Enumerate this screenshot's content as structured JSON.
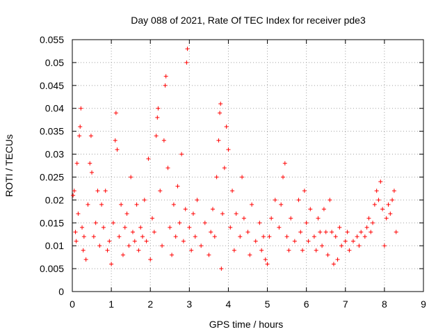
{
  "chart_data": {
    "type": "scatter",
    "title": "Day 088 of 2021, Rate Of TEC Index for receiver pde3",
    "xlabel": "GPS time / hours",
    "ylabel": "ROTI / TECUs",
    "xlim": [
      0,
      9
    ],
    "ylim": [
      0,
      0.055
    ],
    "x_ticks": [
      "0",
      "1",
      "2",
      "3",
      "4",
      "5",
      "6",
      "7",
      "8",
      "9"
    ],
    "y_ticks": [
      "0",
      "0.005",
      "0.01",
      "0.015",
      "0.02",
      "0.025",
      "0.03",
      "0.035",
      "0.04",
      "0.045",
      "0.05",
      "0.055"
    ],
    "grid": true,
    "marker": "+",
    "series": [
      {
        "name": "ROTI",
        "color": "#ff0000",
        "points": [
          [
            0.02,
            0.021
          ],
          [
            0.05,
            0.022
          ],
          [
            0.08,
            0.013
          ],
          [
            0.1,
            0.011
          ],
          [
            0.12,
            0.028
          ],
          [
            0.15,
            0.017
          ],
          [
            0.18,
            0.034
          ],
          [
            0.2,
            0.036
          ],
          [
            0.22,
            0.04
          ],
          [
            0.25,
            0.014
          ],
          [
            0.28,
            0.009
          ],
          [
            0.3,
            0.012
          ],
          [
            0.35,
            0.007
          ],
          [
            0.4,
            0.019
          ],
          [
            0.45,
            0.028
          ],
          [
            0.48,
            0.034
          ],
          [
            0.5,
            0.026
          ],
          [
            0.55,
            0.012
          ],
          [
            0.6,
            0.015
          ],
          [
            0.65,
            0.022
          ],
          [
            0.7,
            0.01
          ],
          [
            0.75,
            0.019
          ],
          [
            0.8,
            0.014
          ],
          [
            0.85,
            0.022
          ],
          [
            0.9,
            0.009
          ],
          [
            0.95,
            0.011
          ],
          [
            1.0,
            0.006
          ],
          [
            1.05,
            0.015
          ],
          [
            1.1,
            0.033
          ],
          [
            1.12,
            0.039
          ],
          [
            1.15,
            0.031
          ],
          [
            1.2,
            0.012
          ],
          [
            1.25,
            0.019
          ],
          [
            1.3,
            0.008
          ],
          [
            1.35,
            0.014
          ],
          [
            1.4,
            0.017
          ],
          [
            1.45,
            0.01
          ],
          [
            1.5,
            0.025
          ],
          [
            1.55,
            0.013
          ],
          [
            1.6,
            0.011
          ],
          [
            1.65,
            0.019
          ],
          [
            1.7,
            0.009
          ],
          [
            1.75,
            0.014
          ],
          [
            1.8,
            0.012
          ],
          [
            1.85,
            0.02
          ],
          [
            1.9,
            0.011
          ],
          [
            1.95,
            0.029
          ],
          [
            2.0,
            0.007
          ],
          [
            2.05,
            0.016
          ],
          [
            2.1,
            0.013
          ],
          [
            2.15,
            0.034
          ],
          [
            2.18,
            0.038
          ],
          [
            2.2,
            0.04
          ],
          [
            2.25,
            0.022
          ],
          [
            2.3,
            0.01
          ],
          [
            2.35,
            0.033
          ],
          [
            2.38,
            0.045
          ],
          [
            2.4,
            0.047
          ],
          [
            2.45,
            0.027
          ],
          [
            2.5,
            0.014
          ],
          [
            2.55,
            0.008
          ],
          [
            2.6,
            0.019
          ],
          [
            2.65,
            0.012
          ],
          [
            2.7,
            0.023
          ],
          [
            2.75,
            0.015
          ],
          [
            2.8,
            0.03
          ],
          [
            2.85,
            0.011
          ],
          [
            2.9,
            0.018
          ],
          [
            2.93,
            0.05
          ],
          [
            2.95,
            0.053
          ],
          [
            3.0,
            0.014
          ],
          [
            3.05,
            0.009
          ],
          [
            3.1,
            0.017
          ],
          [
            3.15,
            0.012
          ],
          [
            3.2,
            0.02
          ],
          [
            3.3,
            0.01
          ],
          [
            3.4,
            0.015
          ],
          [
            3.5,
            0.008
          ],
          [
            3.55,
            0.013
          ],
          [
            3.6,
            0.018
          ],
          [
            3.65,
            0.012
          ],
          [
            3.7,
            0.025
          ],
          [
            3.75,
            0.033
          ],
          [
            3.78,
            0.039
          ],
          [
            3.8,
            0.041
          ],
          [
            3.82,
            0.005
          ],
          [
            3.85,
            0.017
          ],
          [
            3.9,
            0.027
          ],
          [
            3.95,
            0.036
          ],
          [
            4.0,
            0.031
          ],
          [
            4.05,
            0.014
          ],
          [
            4.1,
            0.022
          ],
          [
            4.15,
            0.009
          ],
          [
            4.2,
            0.017
          ],
          [
            4.3,
            0.012
          ],
          [
            4.35,
            0.025
          ],
          [
            4.4,
            0.016
          ],
          [
            4.5,
            0.013
          ],
          [
            4.55,
            0.008
          ],
          [
            4.6,
            0.019
          ],
          [
            4.7,
            0.011
          ],
          [
            4.8,
            0.015
          ],
          [
            4.85,
            0.009
          ],
          [
            4.9,
            0.012
          ],
          [
            4.95,
            0.007
          ],
          [
            5.0,
            0.006
          ],
          [
            5.05,
            0.012
          ],
          [
            5.1,
            0.016
          ],
          [
            5.2,
            0.02
          ],
          [
            5.3,
            0.014
          ],
          [
            5.35,
            0.019
          ],
          [
            5.4,
            0.025
          ],
          [
            5.45,
            0.028
          ],
          [
            5.5,
            0.012
          ],
          [
            5.55,
            0.009
          ],
          [
            5.6,
            0.016
          ],
          [
            5.7,
            0.011
          ],
          [
            5.8,
            0.02
          ],
          [
            5.85,
            0.013
          ],
          [
            5.9,
            0.009
          ],
          [
            5.95,
            0.022
          ],
          [
            6.0,
            0.015
          ],
          [
            6.05,
            0.011
          ],
          [
            6.1,
            0.018
          ],
          [
            6.2,
            0.012
          ],
          [
            6.25,
            0.009
          ],
          [
            6.3,
            0.016
          ],
          [
            6.35,
            0.013
          ],
          [
            6.4,
            0.01
          ],
          [
            6.45,
            0.018
          ],
          [
            6.5,
            0.013
          ],
          [
            6.55,
            0.008
          ],
          [
            6.6,
            0.02
          ],
          [
            6.65,
            0.013
          ],
          [
            6.7,
            0.006
          ],
          [
            6.75,
            0.012
          ],
          [
            6.8,
            0.007
          ],
          [
            6.85,
            0.014
          ],
          [
            6.9,
            0.01
          ],
          [
            7.0,
            0.011
          ],
          [
            7.05,
            0.013
          ],
          [
            7.1,
            0.009
          ],
          [
            7.2,
            0.011
          ],
          [
            7.3,
            0.012
          ],
          [
            7.35,
            0.01
          ],
          [
            7.4,
            0.013
          ],
          [
            7.5,
            0.012
          ],
          [
            7.55,
            0.014
          ],
          [
            7.6,
            0.016
          ],
          [
            7.65,
            0.013
          ],
          [
            7.7,
            0.015
          ],
          [
            7.75,
            0.019
          ],
          [
            7.8,
            0.022
          ],
          [
            7.85,
            0.02
          ],
          [
            7.9,
            0.024
          ],
          [
            7.95,
            0.018
          ],
          [
            8.0,
            0.01
          ],
          [
            8.05,
            0.016
          ],
          [
            8.1,
            0.019
          ],
          [
            8.15,
            0.017
          ],
          [
            8.2,
            0.02
          ],
          [
            8.25,
            0.022
          ],
          [
            8.3,
            0.013
          ]
        ]
      }
    ]
  }
}
